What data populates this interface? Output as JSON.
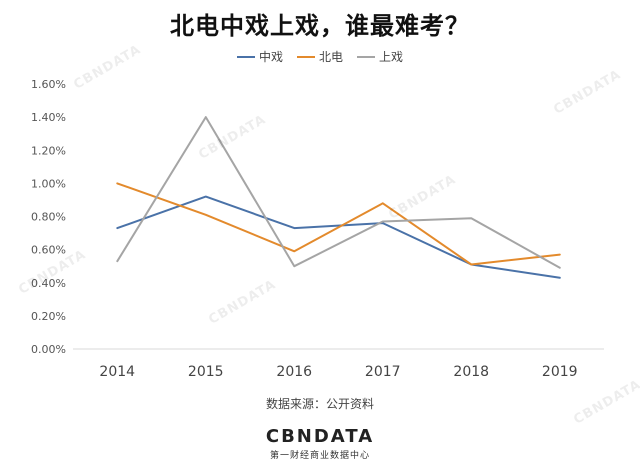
{
  "title": "北电中戏上戏，谁最难考？",
  "source": "数据来源：公开资料",
  "logo": {
    "main": "CBNDATA",
    "sub": "第一财经商业数据中心"
  },
  "watermark": "CBNDATA",
  "colors": {
    "中戏": "#4a72a8",
    "北电": "#e38a2c",
    "上戏": "#a5a5a5"
  },
  "chart_data": {
    "type": "line",
    "title": "北电中戏上戏，谁最难考？",
    "categories": [
      "2014",
      "2015",
      "2016",
      "2017",
      "2018",
      "2019"
    ],
    "ylim": [
      0,
      1.6
    ],
    "yticks": [
      "0.00%",
      "0.20%",
      "0.40%",
      "0.60%",
      "0.80%",
      "1.00%",
      "1.20%",
      "1.40%",
      "1.60%"
    ],
    "grid": false,
    "legend_position": "top",
    "series": [
      {
        "name": "中戏",
        "values": [
          0.73,
          0.92,
          0.73,
          0.76,
          0.51,
          0.43
        ]
      },
      {
        "name": "北电",
        "values": [
          1.0,
          0.81,
          0.59,
          0.88,
          0.51,
          0.57
        ]
      },
      {
        "name": "上戏",
        "values": [
          0.53,
          1.4,
          0.5,
          0.77,
          0.79,
          0.49
        ]
      }
    ]
  }
}
